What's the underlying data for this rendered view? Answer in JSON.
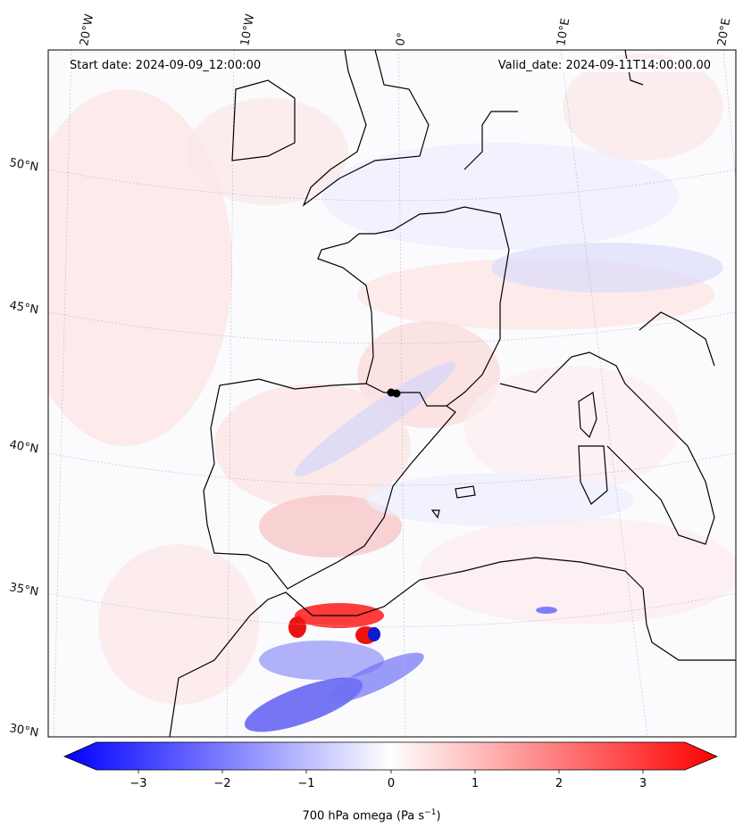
{
  "map": {
    "start_date": "Start date: 2024-09-09_12:00:00",
    "valid_date": "Valid_date: 2024-09-11T14:00:00.00",
    "lon_labels": [
      "20°W",
      "10°W",
      "0°",
      "10°E",
      "20°E"
    ],
    "lat_labels": [
      "50°N",
      "45°N",
      "40°N",
      "35°N",
      "30°N"
    ]
  },
  "colorbar": {
    "ticks": [
      "−3",
      "−2",
      "−1",
      "0",
      "1",
      "2",
      "3"
    ],
    "label": "700 hPa omega (Pa s",
    "label_sup": "−1",
    "label_end": ")",
    "range": [
      -3.7,
      3.7
    ],
    "colors": {
      "min": "#0000ff",
      "mid": "#ffffff",
      "max": "#ff0000"
    }
  }
}
